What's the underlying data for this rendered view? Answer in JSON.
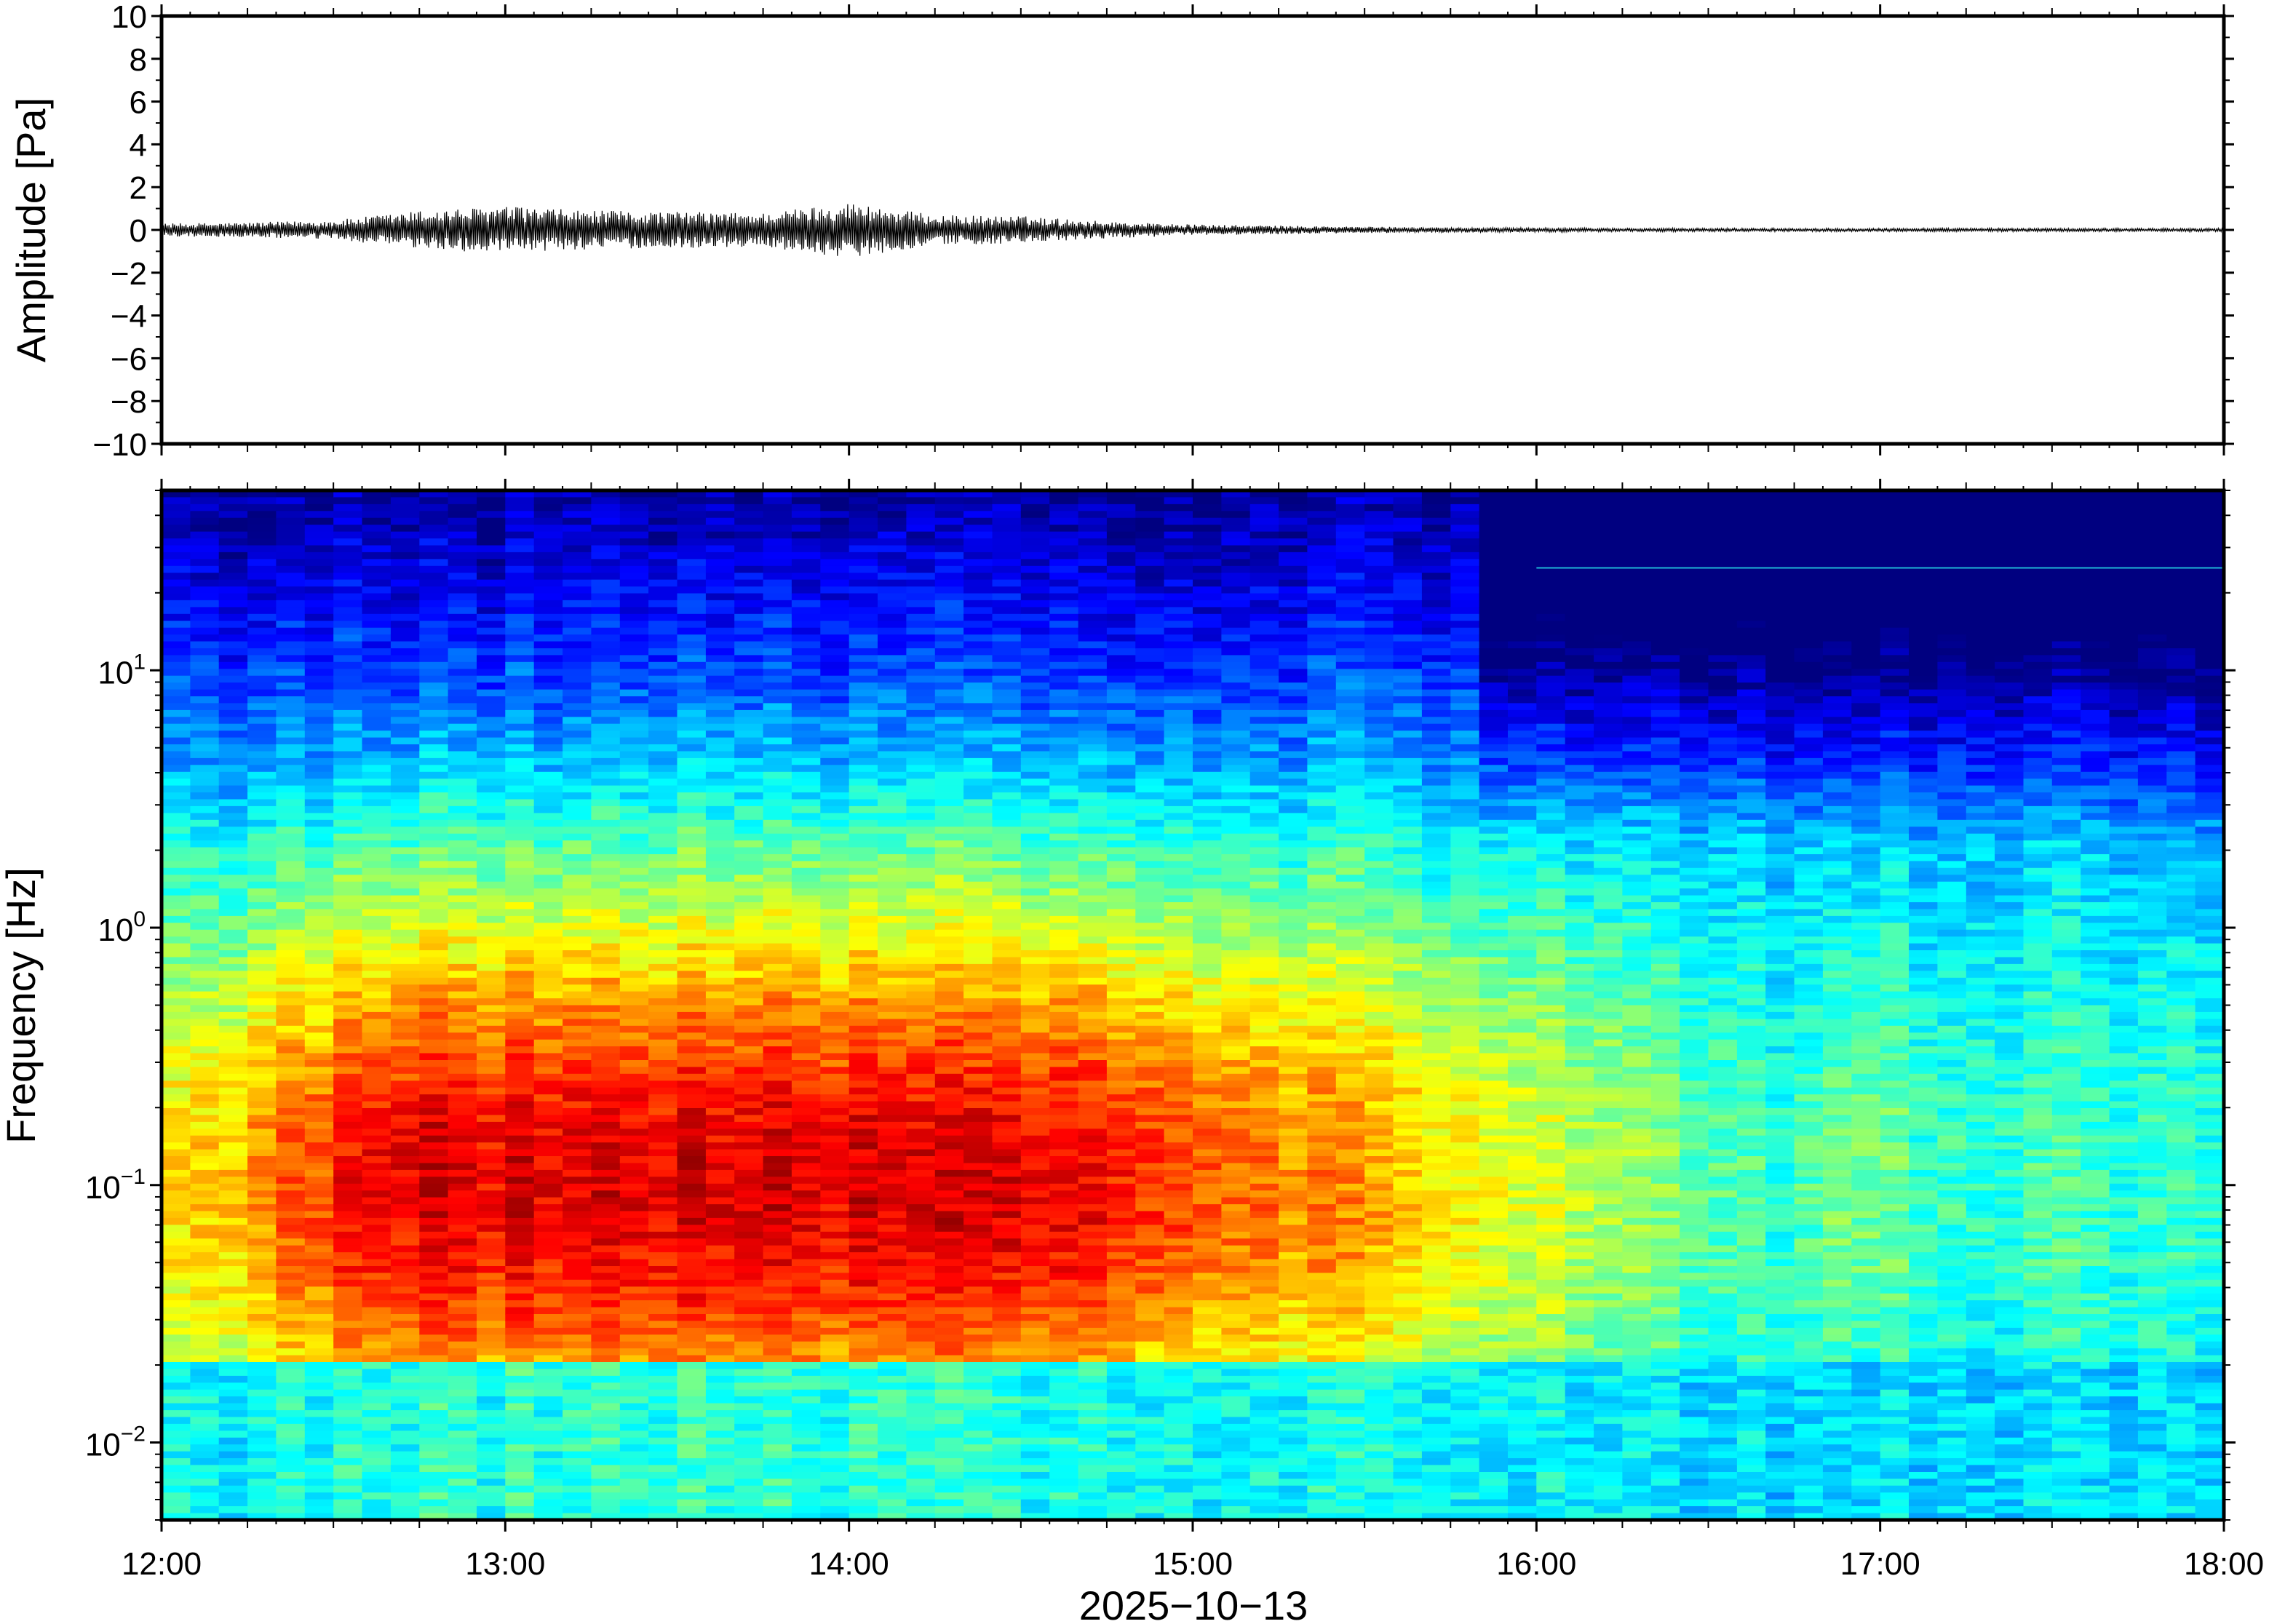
{
  "chart_data": [
    {
      "type": "line",
      "title": "",
      "ylabel": "Amplitude [Pa]",
      "ylim": [
        -10,
        10
      ],
      "yticks": [
        10,
        8,
        6,
        4,
        2,
        0,
        -2,
        -4,
        -6,
        -8,
        -10
      ],
      "ytick_labels": [
        "10",
        "8",
        "6",
        "4",
        "2",
        "0",
        "−2",
        "−4",
        "−6",
        "−8",
        "−10"
      ],
      "xlim": [
        "12:00",
        "18:00"
      ],
      "grid": false,
      "series": [
        {
          "color": "#000000",
          "x": [
            "12:00",
            "12:15",
            "12:30",
            "12:45",
            "13:00",
            "13:15",
            "13:30",
            "13:45",
            "14:00",
            "14:15",
            "14:30",
            "14:45",
            "15:00",
            "15:15",
            "15:30",
            "15:45",
            "16:00",
            "16:15",
            "16:30",
            "16:45",
            "17:00",
            "17:15",
            "17:30",
            "17:45",
            "18:00"
          ],
          "envelope_peak_pa": [
            0.3,
            0.35,
            0.45,
            0.9,
            1.1,
            0.9,
            0.85,
            0.8,
            1.3,
            0.7,
            0.65,
            0.4,
            0.25,
            0.2,
            0.15,
            0.12,
            0.1,
            0.08,
            0.08,
            0.08,
            0.08,
            0.08,
            0.08,
            0.08,
            0.08
          ]
        }
      ]
    },
    {
      "type": "heatmap",
      "title": "",
      "ylabel": "Frequency [Hz]",
      "yscale": "log",
      "ylim_hz": [
        0.005,
        50
      ],
      "yticks_hz": [
        10,
        1,
        0.1,
        0.01
      ],
      "ytick_labels": [
        {
          "base": "10",
          "exp": "1"
        },
        {
          "base": "10",
          "exp": "0"
        },
        {
          "base": "10",
          "exp": "−1"
        },
        {
          "base": "10",
          "exp": "−2"
        }
      ],
      "xlabel": "2025−10−13",
      "xticks": [
        "12:00",
        "13:00",
        "14:00",
        "15:00",
        "16:00",
        "17:00",
        "18:00"
      ],
      "colormap": "jet",
      "colorbar": false,
      "grid": false,
      "features": {
        "energy_peak_frequency_hz": 0.1,
        "high_energy_interval": [
          "12:40",
          "14:40"
        ],
        "quiet_high_frequency_interval": [
          "15:50",
          "18:00"
        ],
        "narrowband_line_hz": 25,
        "narrowband_line_start": "16:00"
      }
    }
  ]
}
